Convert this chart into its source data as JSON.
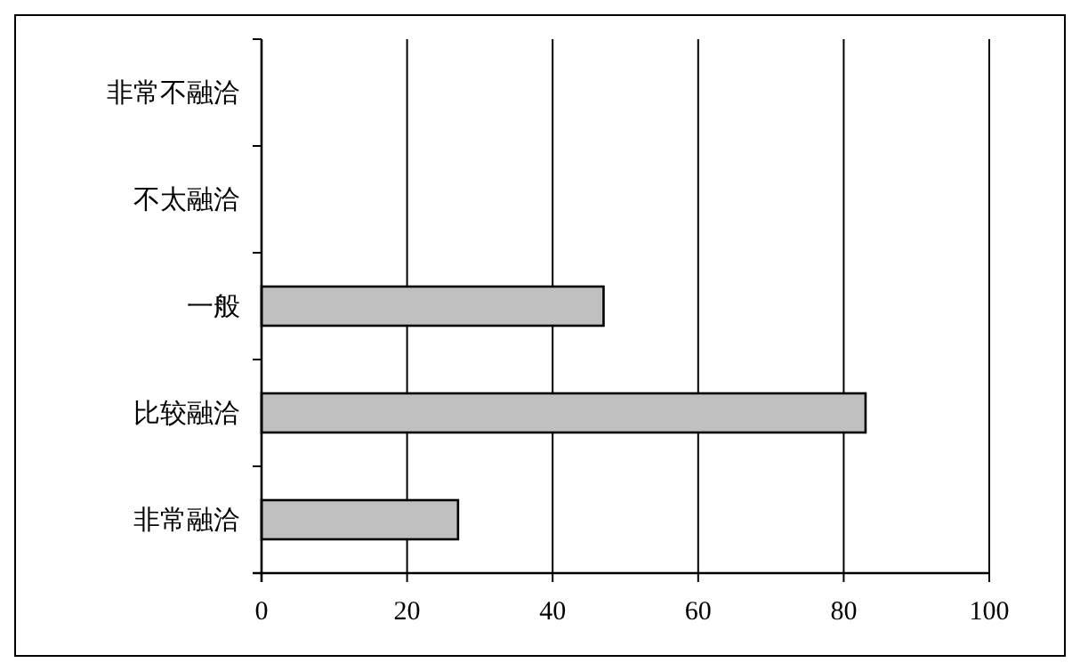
{
  "chart_data": {
    "type": "bar",
    "orientation": "horizontal",
    "categories": [
      "非常不融洽",
      "不太融洽",
      "一般",
      "比较融洽",
      "非常融洽"
    ],
    "values": [
      0,
      0,
      47,
      83,
      27
    ],
    "color": "#c0c0c0",
    "xlim": [
      0,
      100
    ],
    "xticks": [
      0,
      20,
      40,
      60,
      80,
      100
    ],
    "grid": "x"
  }
}
